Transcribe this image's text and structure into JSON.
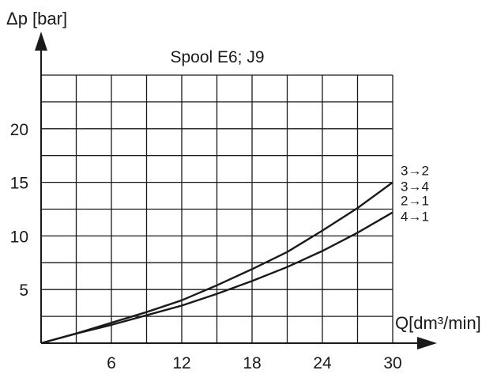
{
  "chart_data": {
    "type": "line",
    "title": "Spool E6; J9",
    "xlabel": "Q[dm³/min]",
    "ylabel": "Δp [bar]",
    "xlim": [
      0,
      30
    ],
    "ylim": [
      0,
      25
    ],
    "x_ticks": [
      6,
      12,
      18,
      24,
      30
    ],
    "y_ticks": [
      5,
      10,
      15,
      20
    ],
    "grid": true,
    "series": [
      {
        "name": "3→2\n3→4",
        "x": [
          0,
          3,
          6,
          9,
          12,
          15,
          18,
          21,
          24,
          27,
          30
        ],
        "y": [
          0,
          0.9,
          1.9,
          2.9,
          4.0,
          5.4,
          6.9,
          8.5,
          10.5,
          12.6,
          15.0
        ]
      },
      {
        "name": "2→1\n4→1",
        "x": [
          0,
          3,
          6,
          9,
          12,
          15,
          18,
          21,
          24,
          27,
          30
        ],
        "y": [
          0,
          0.9,
          1.7,
          2.6,
          3.5,
          4.6,
          5.8,
          7.1,
          8.6,
          10.3,
          12.2
        ]
      }
    ]
  }
}
